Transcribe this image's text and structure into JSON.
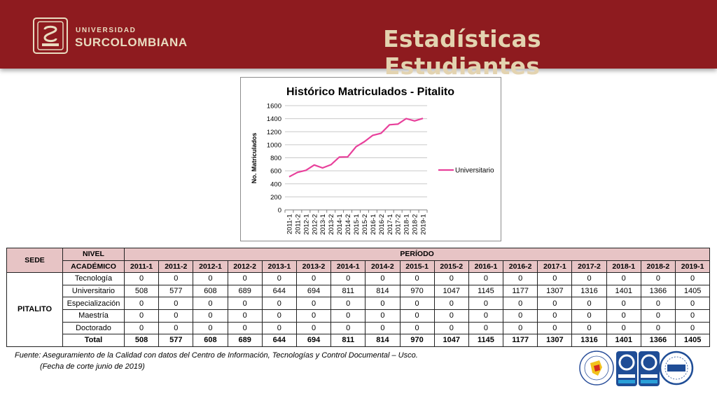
{
  "header": {
    "logo_top": "UNIVERSIDAD",
    "logo_main": "SURCOLOMBIANA",
    "title": "Estadísticas Estudiantes"
  },
  "colors": {
    "header_bg": "#8e1b1f",
    "header_text": "#e3d3b0",
    "series_line": "#e8409b",
    "table_header_bg": "#e7c4c5"
  },
  "chart_data": {
    "type": "line",
    "title": "Histórico Matriculados - Pitalito",
    "ylabel": "No. Matriculados",
    "xlabel": "",
    "ylim": [
      0,
      1600
    ],
    "yticks": [
      0,
      200,
      400,
      600,
      800,
      1000,
      1200,
      1400,
      1600
    ],
    "grid": true,
    "legend_position": "right",
    "categories": [
      "2011-1",
      "2011-2",
      "2012-1",
      "2012-2",
      "2013-1",
      "2013-2",
      "2014-1",
      "2014-2",
      "2015-1",
      "2015-2",
      "2016-1",
      "2016-2",
      "2017-1",
      "2017-2",
      "2018-1",
      "2018-2",
      "2019-1"
    ],
    "series": [
      {
        "name": "Universitario",
        "color": "#e8409b",
        "values": [
          508,
          577,
          608,
          689,
          644,
          694,
          811,
          814,
          970,
          1047,
          1145,
          1177,
          1307,
          1316,
          1401,
          1366,
          1405
        ]
      }
    ]
  },
  "table": {
    "headers": {
      "sede": "SEDE",
      "nivel_line1": "NIVEL",
      "nivel_line2": "ACADÉMICO",
      "periodo": "PERÍODO"
    },
    "periods": [
      "2011-1",
      "2011-2",
      "2012-1",
      "2012-2",
      "2013-1",
      "2013-2",
      "2014-1",
      "2014-2",
      "2015-1",
      "2015-2",
      "2016-1",
      "2016-2",
      "2017-1",
      "2017-2",
      "2018-1",
      "2018-2",
      "2019-1"
    ],
    "sede": "PITALITO",
    "rows": [
      {
        "nivel": "Tecnología",
        "values": [
          0,
          0,
          0,
          0,
          0,
          0,
          0,
          0,
          0,
          0,
          0,
          0,
          0,
          0,
          0,
          0,
          0
        ]
      },
      {
        "nivel": "Universitario",
        "values": [
          508,
          577,
          608,
          689,
          644,
          694,
          811,
          814,
          970,
          1047,
          1145,
          1177,
          1307,
          1316,
          1401,
          1366,
          1405
        ]
      },
      {
        "nivel": "Especialización",
        "values": [
          0,
          0,
          0,
          0,
          0,
          0,
          0,
          0,
          0,
          0,
          0,
          0,
          0,
          0,
          0,
          0,
          0
        ]
      },
      {
        "nivel": "Maestría",
        "values": [
          0,
          0,
          0,
          0,
          0,
          0,
          0,
          0,
          0,
          0,
          0,
          0,
          0,
          0,
          0,
          0,
          0
        ]
      },
      {
        "nivel": "Doctorado",
        "values": [
          0,
          0,
          0,
          0,
          0,
          0,
          0,
          0,
          0,
          0,
          0,
          0,
          0,
          0,
          0,
          0,
          0
        ]
      }
    ],
    "total": {
      "nivel": "Total",
      "values": [
        508,
        577,
        608,
        689,
        644,
        694,
        811,
        814,
        970,
        1047,
        1145,
        1177,
        1307,
        1316,
        1401,
        1366,
        1405
      ]
    }
  },
  "source": {
    "line1": "Fuente: Aseguramiento de la Calidad con datos del Centro de Información, Tecnologías y Control Documental – Usco.",
    "line2": "(Fecha de corte junio de 2019)"
  },
  "cert_logos": [
    "colombia-accreditation-seal-icon",
    "icontec-iso9001-icon",
    "icontec-ntcgp1000-icon",
    "iqnet-icon"
  ]
}
